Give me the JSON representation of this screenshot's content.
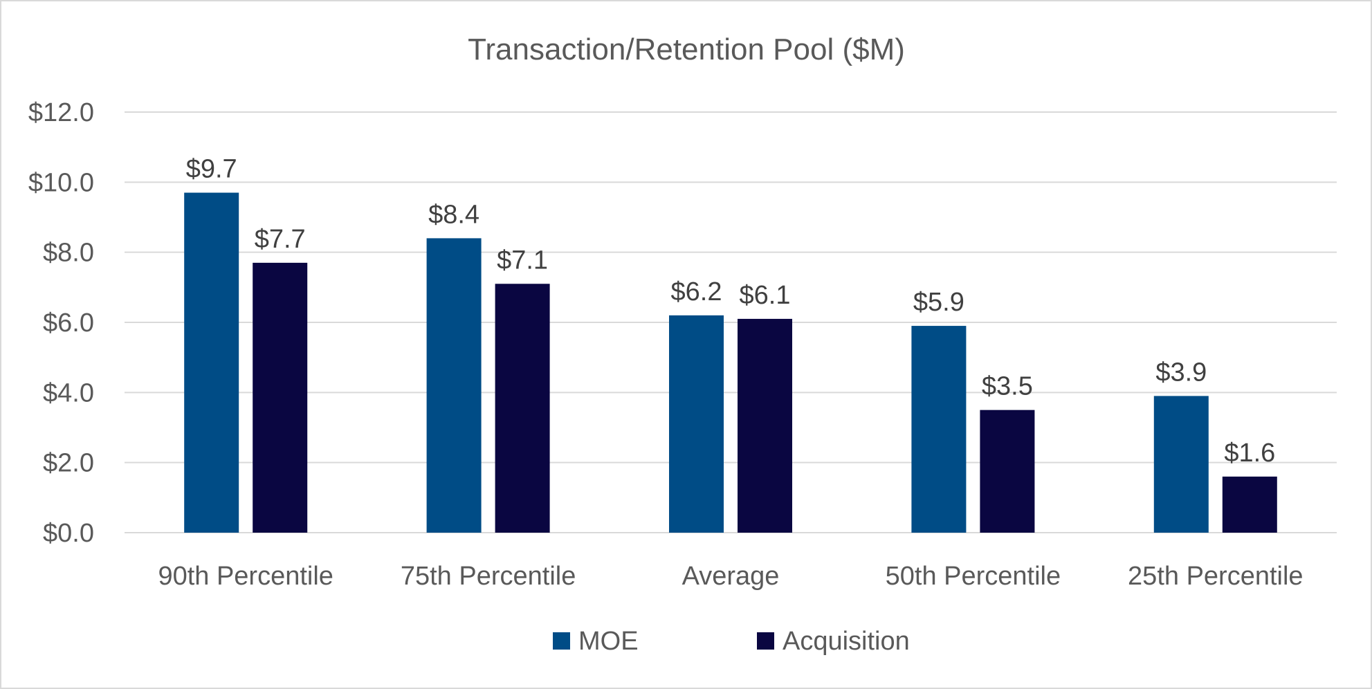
{
  "chart_data": {
    "type": "bar",
    "title": "Transaction/Retention Pool ($M)",
    "xlabel": "",
    "ylabel": "",
    "categories": [
      "90th Percentile",
      "75th Percentile",
      "Average",
      "50th Percentile",
      "25th Percentile"
    ],
    "series": [
      {
        "name": "MOE",
        "values": [
          9.7,
          8.4,
          6.2,
          5.9,
          3.9
        ],
        "color": "#004c86"
      },
      {
        "name": "Acquisition",
        "values": [
          7.7,
          7.1,
          6.1,
          3.5,
          1.6
        ],
        "color": "#0a0641"
      }
    ],
    "data_labels": [
      [
        "$9.7",
        "$8.4",
        "$6.2",
        "$5.9",
        "$3.9"
      ],
      [
        "$7.7",
        "$7.1",
        "$6.1",
        "$3.5",
        "$1.6"
      ]
    ],
    "ylim": [
      0,
      12
    ],
    "yticks": [
      "$0.0",
      "$2.0",
      "$4.0",
      "$6.0",
      "$8.0",
      "$10.0",
      "$12.0"
    ],
    "grid": true,
    "legend_position": "bottom"
  }
}
